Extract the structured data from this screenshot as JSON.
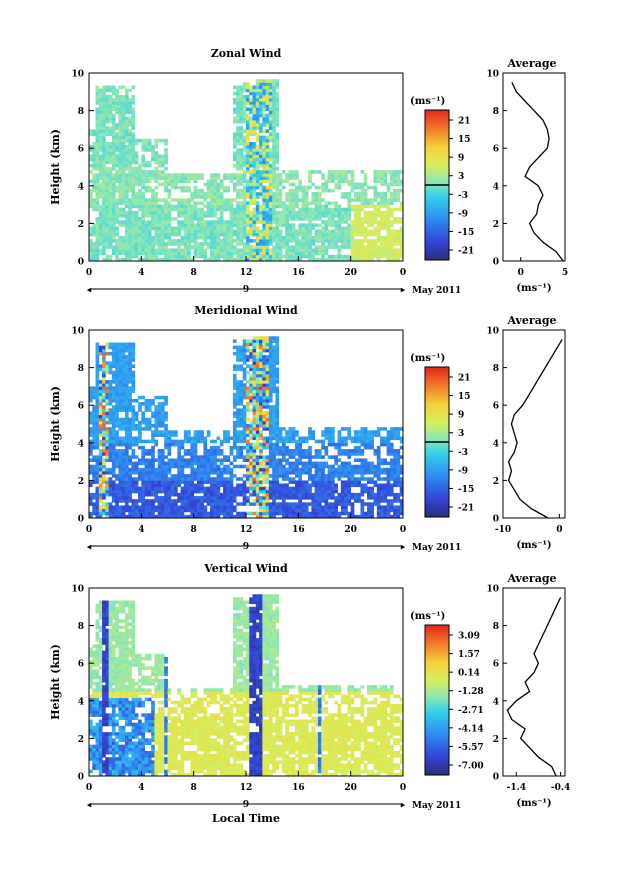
{
  "chart_data": [
    {
      "type": "heatmap",
      "title": "Zonal Wind",
      "ylabel": "Height (km)",
      "xticks": [
        "0",
        "4",
        "8",
        "12",
        "16",
        "20",
        "0"
      ],
      "yticks": [
        "0",
        "2",
        "4",
        "6",
        "8",
        "10"
      ],
      "xlim": [
        0,
        24
      ],
      "ylim": [
        0,
        10
      ],
      "date_label": "9",
      "month_label": "May 2011",
      "colorbar": {
        "unit_label": "(ms⁻¹)",
        "ticks": [
          "21",
          "15",
          "9",
          "3",
          "-3",
          "-9",
          "-15",
          "-21"
        ],
        "range": [
          -24,
          24
        ],
        "zero_line": true
      },
      "average": {
        "title": "Average",
        "xlabel": "(ms⁻¹)",
        "xticks": [
          "0",
          "5"
        ],
        "xlim": [
          -2,
          5
        ],
        "yticks": [
          "0",
          "2",
          "4",
          "6",
          "8",
          "10"
        ],
        "profile_height": [
          0.0,
          0.5,
          1.0,
          1.5,
          2.0,
          2.5,
          3.0,
          3.5,
          4.0,
          4.5,
          5.0,
          5.5,
          6.0,
          6.5,
          7.0,
          7.5,
          8.0,
          8.5,
          9.0,
          9.5
        ],
        "profile_value": [
          4.8,
          4.0,
          2.5,
          1.5,
          1.0,
          1.8,
          2.0,
          2.5,
          2.0,
          0.5,
          1.0,
          2.0,
          3.0,
          3.2,
          3.0,
          2.5,
          1.5,
          0.5,
          -0.5,
          -1.0
        ]
      },
      "field": "zonal"
    },
    {
      "type": "heatmap",
      "title": "Meridional Wind",
      "ylabel": "Height (km)",
      "xticks": [
        "0",
        "4",
        "8",
        "12",
        "16",
        "20",
        "0"
      ],
      "yticks": [
        "0",
        "2",
        "4",
        "6",
        "8",
        "10"
      ],
      "xlim": [
        0,
        24
      ],
      "ylim": [
        0,
        10
      ],
      "date_label": "9",
      "month_label": "May 2011",
      "colorbar": {
        "unit_label": "(ms⁻¹)",
        "ticks": [
          "21",
          "15",
          "9",
          "3",
          "-3",
          "-9",
          "-15",
          "-21"
        ],
        "range": [
          -24,
          24
        ],
        "zero_line": true
      },
      "average": {
        "title": "Average",
        "xlabel": "(ms⁻¹)",
        "xticks": [
          "-10",
          "0"
        ],
        "xlim": [
          -10,
          1
        ],
        "yticks": [
          "0",
          "2",
          "4",
          "6",
          "8",
          "10"
        ],
        "profile_height": [
          0.0,
          0.5,
          1.0,
          1.5,
          2.0,
          2.5,
          3.0,
          3.5,
          4.0,
          4.5,
          5.0,
          5.5,
          6.0,
          6.5,
          7.0,
          7.5,
          8.0,
          8.5,
          9.0,
          9.5
        ],
        "profile_value": [
          -2.0,
          -5.0,
          -7.0,
          -8.0,
          -9.0,
          -8.5,
          -9.0,
          -8.0,
          -7.5,
          -8.0,
          -8.5,
          -8.0,
          -6.5,
          -5.5,
          -4.5,
          -3.5,
          -2.5,
          -1.5,
          -0.5,
          0.5
        ]
      },
      "field": "meridional"
    },
    {
      "type": "heatmap",
      "title": "Vertical Wind",
      "ylabel": "Height (km)",
      "xlabel": "Local Time",
      "xticks": [
        "0",
        "4",
        "8",
        "12",
        "16",
        "20",
        "0"
      ],
      "yticks": [
        "0",
        "2",
        "4",
        "6",
        "8",
        "10"
      ],
      "xlim": [
        0,
        24
      ],
      "ylim": [
        0,
        10
      ],
      "date_label": "9",
      "month_label": "May 2011",
      "colorbar": {
        "unit_label": "(ms⁻¹)",
        "ticks": [
          "3.09",
          "1.57",
          "0.14",
          "-1.28",
          "-2.71",
          "-4.14",
          "-5.57",
          "-7.00"
        ],
        "range": [
          -7.7,
          3.8
        ],
        "zero_line": false
      },
      "average": {
        "title": "Average",
        "xlabel": "(ms⁻¹)",
        "xticks": [
          "-1.4",
          "-0.4"
        ],
        "xlim": [
          -1.7,
          -0.3
        ],
        "yticks": [
          "0",
          "2",
          "4",
          "6",
          "8",
          "10"
        ],
        "profile_height": [
          0.0,
          0.5,
          1.0,
          1.5,
          2.0,
          2.5,
          3.0,
          3.5,
          4.0,
          4.5,
          5.0,
          5.5,
          6.0,
          6.5,
          7.0,
          7.5,
          8.0,
          8.5,
          9.0,
          9.5
        ],
        "profile_value": [
          -0.5,
          -0.6,
          -0.9,
          -1.1,
          -1.3,
          -1.2,
          -1.5,
          -1.6,
          -1.4,
          -1.1,
          -1.2,
          -1.0,
          -0.9,
          -1.0,
          -0.9,
          -0.8,
          -0.7,
          -0.6,
          -0.5,
          -0.4
        ]
      },
      "field": "vertical"
    }
  ]
}
